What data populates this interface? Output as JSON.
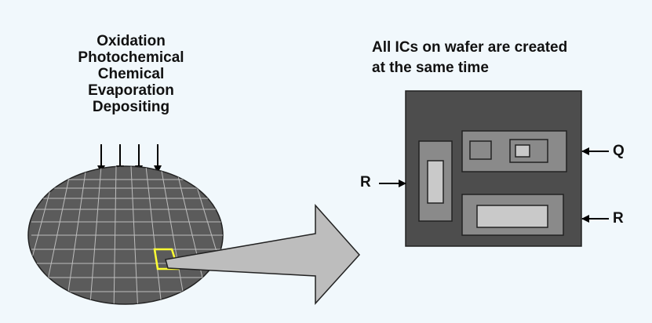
{
  "process_steps": [
    "Oxidation",
    "Photochemical",
    "Chemical",
    "Evaporation",
    "Depositing"
  ],
  "headline_line1": "All ICs on wafer are created",
  "headline_line2": "at the same time",
  "labels": {
    "left_r": "R",
    "right_q": "Q",
    "right_r": "R"
  },
  "colors": {
    "background": "#f1f8fc",
    "wafer": "#5b5b5b",
    "chip_die": "#4d4d4d",
    "highlight": "#ffff33",
    "callout_arrow": "#bdbdbd"
  }
}
